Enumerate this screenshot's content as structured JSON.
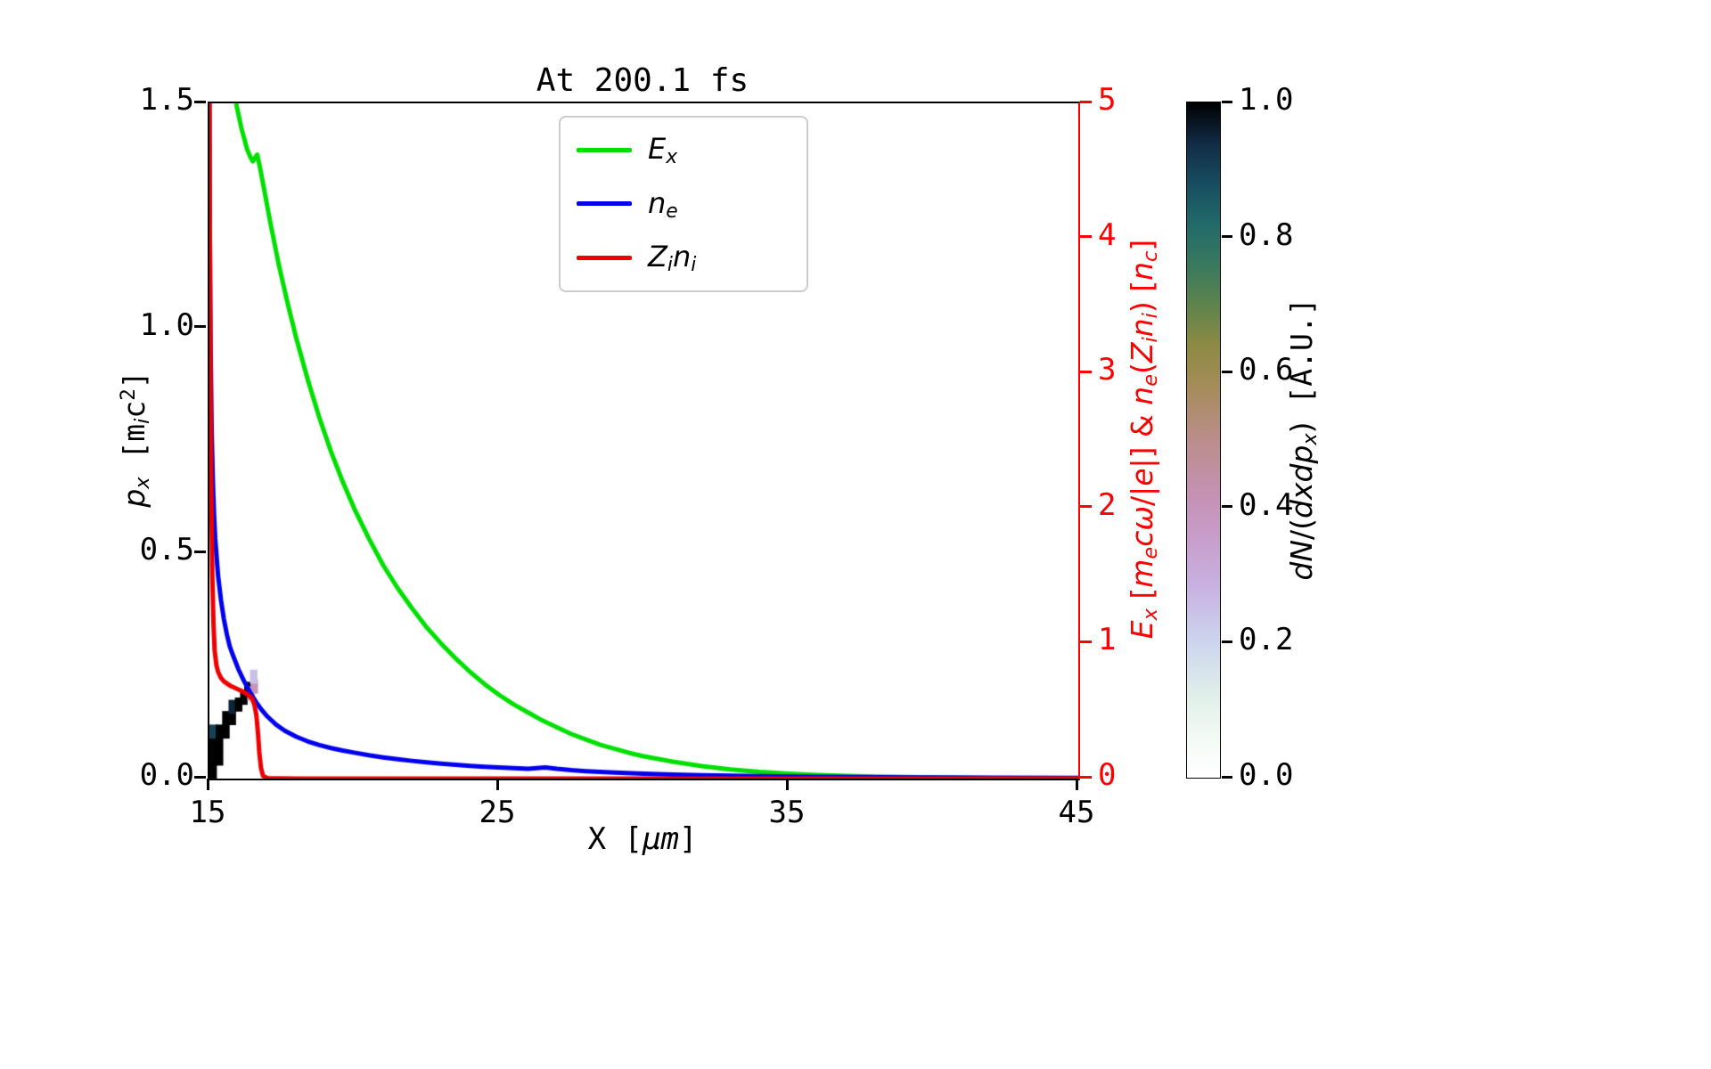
{
  "chart_data": {
    "type": "line",
    "title": "At 200.1 fs",
    "x_axis": {
      "label_segments": [
        {
          "t": "X [",
          "st": "m"
        },
        {
          "t": "μm",
          "st": "i"
        },
        {
          "t": "]",
          "st": "m"
        }
      ],
      "range": [
        15,
        45
      ],
      "ticks": [
        15,
        25,
        35,
        45
      ],
      "tick_labels": [
        "15",
        "25",
        "35",
        "45"
      ]
    },
    "y_left_axis": {
      "label_segments": [
        {
          "t": "p",
          "st": "i"
        },
        {
          "t": "x",
          "st": "is"
        },
        {
          "t": " [",
          "st": "m"
        },
        {
          "t": "m",
          "st": "m"
        },
        {
          "t": "i",
          "st": "is"
        },
        {
          "t": "c",
          "st": "m"
        },
        {
          "t": "2",
          "st": "Sm"
        },
        {
          "t": "]",
          "st": "m"
        }
      ],
      "range": [
        0,
        1.5
      ],
      "ticks": [
        0,
        0.5,
        1,
        1.5
      ],
      "tick_labels": [
        "0.0",
        "0.5",
        "1.0",
        "1.5"
      ],
      "color": "#000000"
    },
    "y_right_axis": {
      "label_segments": [
        {
          "t": "E",
          "st": "i"
        },
        {
          "t": "x",
          "st": "is"
        },
        {
          "t": " [",
          "st": ""
        },
        {
          "t": "m",
          "st": "i"
        },
        {
          "t": "e",
          "st": "is"
        },
        {
          "t": "c",
          "st": "i"
        },
        {
          "t": "ω",
          "st": "i"
        },
        {
          "t": "/|",
          "st": ""
        },
        {
          "t": "e",
          "st": "i"
        },
        {
          "t": "|] & ",
          "st": ""
        },
        {
          "t": "n",
          "st": "i"
        },
        {
          "t": "e",
          "st": "is"
        },
        {
          "t": "(",
          "st": ""
        },
        {
          "t": "Z",
          "st": "i"
        },
        {
          "t": "i",
          "st": "is"
        },
        {
          "t": "n",
          "st": "i"
        },
        {
          "t": "i",
          "st": "is"
        },
        {
          "t": ") [",
          "st": ""
        },
        {
          "t": "n",
          "st": "i"
        },
        {
          "t": "c",
          "st": "is"
        },
        {
          "t": "]",
          "st": ""
        }
      ],
      "range": [
        0,
        5
      ],
      "ticks": [
        0,
        1,
        2,
        3,
        4,
        5
      ],
      "tick_labels": [
        "0",
        "1",
        "2",
        "3",
        "4",
        "5"
      ],
      "color": "#ff0000"
    },
    "legend": [
      {
        "name": "E_x",
        "color": "#00e000",
        "segments": [
          {
            "t": "E",
            "st": "i"
          },
          {
            "t": "x",
            "st": "is"
          }
        ]
      },
      {
        "name": "n_e",
        "color": "#0000ee",
        "segments": [
          {
            "t": "n",
            "st": "i"
          },
          {
            "t": "e",
            "st": "is"
          }
        ]
      },
      {
        "name": "Z_i n_i",
        "color": "#ee0000",
        "segments": [
          {
            "t": "Z",
            "st": "i"
          },
          {
            "t": "i",
            "st": "is"
          },
          {
            "t": "n",
            "st": "i"
          },
          {
            "t": "i",
            "st": "is"
          }
        ]
      }
    ],
    "series": [
      {
        "name": "E_x",
        "color": "#00e000",
        "axis": "right",
        "x": [
          15.92,
          16.0,
          16.05,
          16.1,
          16.2,
          16.3,
          16.42,
          16.5,
          16.58,
          16.65,
          16.75,
          16.9,
          17.1,
          17.4,
          17.7,
          18.0,
          18.4,
          18.8,
          19.2,
          19.6,
          20.0,
          20.5,
          21.0,
          21.5,
          22.0,
          22.5,
          23.0,
          23.5,
          24.0,
          24.5,
          25.0,
          25.5,
          26.0,
          26.5,
          27.0,
          27.5,
          28.0,
          28.5,
          29.0,
          29.5,
          30.0,
          31.0,
          32.0,
          33.0,
          34.0,
          35.0,
          36.0,
          37.0,
          38.0,
          40.0,
          42.0,
          45.0
        ],
        "y": [
          5.0,
          4.92,
          4.87,
          4.82,
          4.74,
          4.66,
          4.6,
          4.57,
          4.6,
          4.62,
          4.52,
          4.35,
          4.12,
          3.8,
          3.52,
          3.26,
          2.95,
          2.67,
          2.42,
          2.2,
          2.0,
          1.78,
          1.58,
          1.41,
          1.26,
          1.12,
          1.0,
          0.89,
          0.79,
          0.7,
          0.62,
          0.55,
          0.49,
          0.43,
          0.38,
          0.33,
          0.29,
          0.25,
          0.22,
          0.19,
          0.165,
          0.125,
          0.092,
          0.068,
          0.05,
          0.037,
          0.027,
          0.02,
          0.015,
          0.008,
          0.004,
          0.001
        ]
      },
      {
        "name": "n_e",
        "color": "#0000ee",
        "axis": "right",
        "x": [
          15.0,
          15.01,
          15.04,
          15.08,
          15.12,
          15.16,
          15.2,
          15.3,
          15.4,
          15.5,
          15.6,
          15.7,
          15.8,
          16.0,
          16.2,
          16.4,
          16.6,
          16.8,
          17.0,
          17.3,
          17.6,
          18.0,
          18.4,
          18.8,
          19.2,
          19.6,
          20.0,
          20.5,
          21.0,
          21.5,
          22.0,
          22.5,
          23.0,
          23.5,
          24.0,
          24.5,
          25.0,
          25.5,
          26.0,
          26.3,
          26.6,
          27.0,
          27.5,
          28.0,
          29.0,
          30.0,
          31.0,
          32.0,
          34.0,
          36.0,
          38.0,
          40.0,
          42.0,
          45.0
        ],
        "y": [
          5.0,
          4.2,
          3.2,
          2.55,
          2.2,
          1.95,
          1.78,
          1.5,
          1.32,
          1.18,
          1.07,
          0.98,
          0.92,
          0.81,
          0.72,
          0.64,
          0.57,
          0.51,
          0.46,
          0.4,
          0.355,
          0.31,
          0.275,
          0.248,
          0.226,
          0.208,
          0.192,
          0.173,
          0.157,
          0.143,
          0.131,
          0.12,
          0.11,
          0.102,
          0.094,
          0.088,
          0.082,
          0.077,
          0.073,
          0.078,
          0.083,
          0.072,
          0.062,
          0.055,
          0.044,
          0.036,
          0.03,
          0.025,
          0.018,
          0.013,
          0.01,
          0.008,
          0.006,
          0.005
        ]
      },
      {
        "name": "Z_i n_i",
        "color": "#ee0000",
        "axis": "right",
        "x": [
          15.0,
          15.01,
          15.03,
          15.06,
          15.1,
          15.14,
          15.18,
          15.24,
          15.3,
          15.4,
          15.5,
          15.7,
          15.9,
          16.1,
          16.3,
          16.45,
          16.55,
          16.62,
          16.68,
          16.72,
          16.78,
          16.85,
          17.0,
          18.0,
          20.0,
          25.0,
          30.0,
          35.0,
          40.0,
          45.0
        ],
        "y": [
          5.0,
          4.3,
          3.2,
          2.2,
          1.5,
          1.15,
          0.95,
          0.84,
          0.79,
          0.745,
          0.72,
          0.69,
          0.67,
          0.65,
          0.625,
          0.6,
          0.55,
          0.47,
          0.33,
          0.2,
          0.08,
          0.02,
          0.004,
          0.0,
          0.0,
          0.0,
          0.0,
          0.0,
          0.0,
          0.0
        ]
      }
    ],
    "heatmap": {
      "cell_w": 0.24,
      "cell_h": 0.03,
      "cells": [
        [
          15.0,
          0.0,
          1.0
        ],
        [
          15.0,
          0.03,
          1.0
        ],
        [
          15.0,
          0.06,
          1.0
        ],
        [
          15.0,
          0.09,
          0.9
        ],
        [
          15.22,
          0.03,
          1.0
        ],
        [
          15.22,
          0.06,
          1.0
        ],
        [
          15.22,
          0.09,
          1.0
        ],
        [
          15.44,
          0.09,
          1.0
        ],
        [
          15.44,
          0.12,
          1.0
        ],
        [
          15.66,
          0.12,
          1.0
        ],
        [
          15.66,
          0.145,
          0.95
        ],
        [
          15.88,
          0.15,
          1.0
        ],
        [
          16.06,
          0.165,
          1.0
        ],
        [
          16.2,
          0.185,
          1.0
        ],
        [
          16.3,
          0.175,
          0.45
        ],
        [
          16.42,
          0.19,
          0.4
        ],
        [
          16.4,
          0.212,
          0.25
        ]
      ]
    },
    "colorbar": {
      "label_segments": [
        {
          "t": "dN",
          "st": "i"
        },
        {
          "t": "/(",
          "st": ""
        },
        {
          "t": "dxdp",
          "st": "i"
        },
        {
          "t": "x",
          "st": "is"
        },
        {
          "t": ")",
          "st": ""
        },
        {
          "t": " [A.U.]",
          "st": "m"
        }
      ],
      "range": [
        0,
        1
      ],
      "ticks": [
        0,
        0.2,
        0.4,
        0.6,
        0.8,
        1
      ],
      "tick_labels": [
        "0.0",
        "0.2",
        "0.4",
        "0.6",
        "0.8",
        "1.0"
      ],
      "stops": [
        [
          0.0,
          "#ffffff"
        ],
        [
          0.06,
          "#f3faf6"
        ],
        [
          0.12,
          "#e0efe9"
        ],
        [
          0.2,
          "#cdd5ee"
        ],
        [
          0.28,
          "#c8b2e2"
        ],
        [
          0.36,
          "#c89cc9"
        ],
        [
          0.42,
          "#c591b3"
        ],
        [
          0.5,
          "#bb8d8b"
        ],
        [
          0.58,
          "#a58c59"
        ],
        [
          0.64,
          "#8c8a43"
        ],
        [
          0.7,
          "#5e844c"
        ],
        [
          0.76,
          "#38795f"
        ],
        [
          0.82,
          "#226a6a"
        ],
        [
          0.88,
          "#174d60"
        ],
        [
          0.94,
          "#112b45"
        ],
        [
          1.0,
          "#000000"
        ]
      ]
    }
  }
}
